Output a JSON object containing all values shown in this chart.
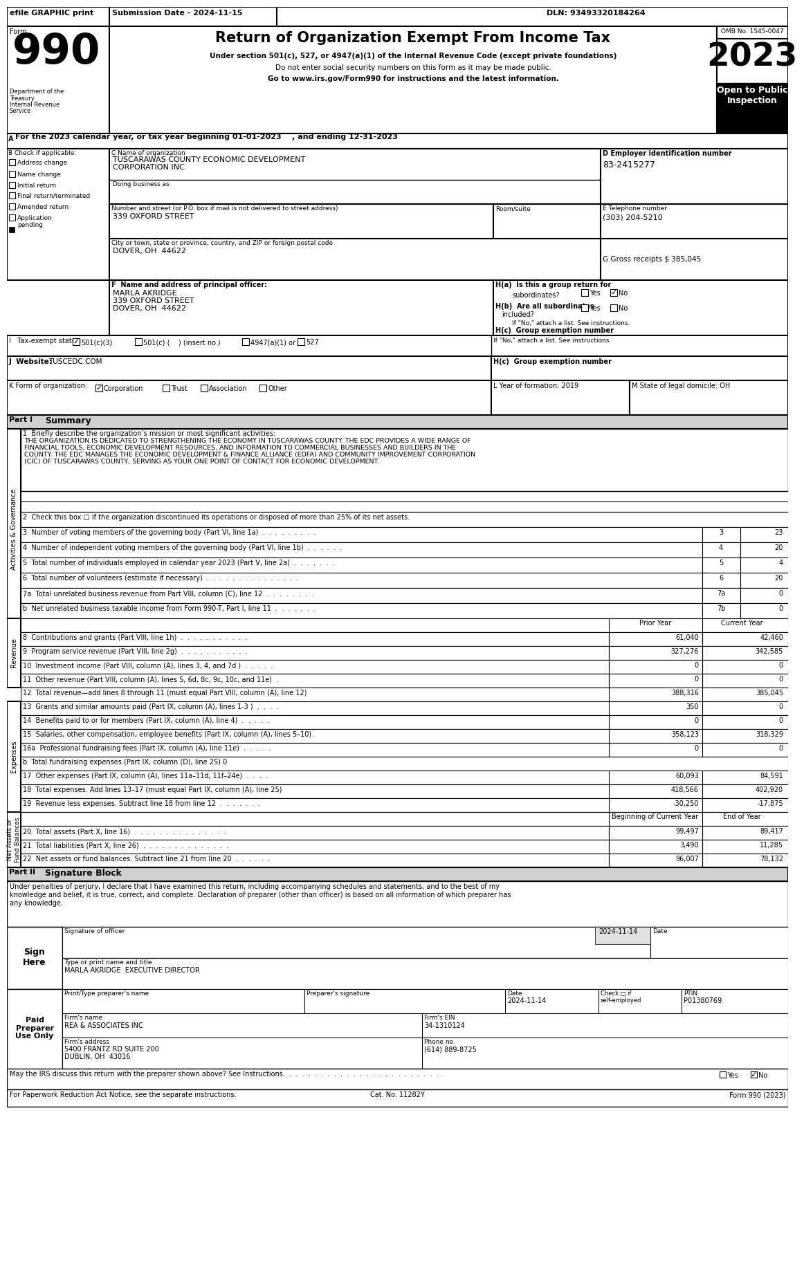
{
  "title_top": "efile GRAPHIC print",
  "submission_date": "Submission Date - 2024-11-15",
  "dln": "DLN: 93493320184264",
  "form_number": "990",
  "main_title": "Return of Organization Exempt From Income Tax",
  "subtitle1": "Under section 501(c), 527, or 4947(a)(1) of the Internal Revenue Code (except private foundations)",
  "subtitle2": "Do not enter social security numbers on this form as it may be made public.",
  "subtitle3": "Go to www.irs.gov/Form990 for instructions and the latest information.",
  "year": "2023",
  "omb": "OMB No. 1545-0047",
  "open_public": "Open to Public\nInspection",
  "dept": "Department of the\nTreasury\nInternal Revenue\nService",
  "tax_year_line": "For the 2023 calendar year, or tax year beginning 01-01-2023    , and ending 12-31-2023",
  "b_label": "B Check if applicable:",
  "b_items": [
    "Address change",
    "Name change",
    "Initial return",
    "Final return/terminated",
    "Amended return",
    "Application\npending"
  ],
  "c_label": "C Name of organization",
  "org_name_l1": "TUSCARAWAS COUNTY ECONOMIC DEVELOPMENT",
  "org_name_l2": "CORPORATION INC",
  "dba_label": "Doing business as",
  "addr_label": "Number and street (or P.O. box if mail is not delivered to street address)",
  "addr_value": "339 OXFORD STREET",
  "room_label": "Room/suite",
  "city_label": "City or town, state or province, country, and ZIP or foreign postal code",
  "city_value": "DOVER, OH  44622",
  "d_label": "D Employer identification number",
  "ein": "83-2415277",
  "e_label": "E Telephone number",
  "phone": "(303) 204-5210",
  "g_label": "G Gross receipts $ 385,045",
  "f_label": "F  Name and address of principal officer:",
  "officer_name": "MARLA AKRIDGE",
  "officer_addr": "339 OXFORD STREET",
  "officer_city": "DOVER, OH  44622",
  "ha_label": "H(a)  Is this a group return for",
  "ha_sub": "subordinates?",
  "hb_label_l1": "H(b)  Are all subordinates",
  "hb_label_l2": "included?",
  "hc_label": "H(c)  Group exemption number",
  "if_no": "If \"No,\" attach a list. See instructions.",
  "i_label": "I   Tax-exempt status:",
  "i_501c3": "501(c)(3)",
  "i_501c": "501(c) (    ) (insert no.)",
  "i_4947": "4947(a)(1) or",
  "i_527": "527",
  "j_label": "J  Website:",
  "j_website": "TUSCEDC.COM",
  "k_label": "K Form of organization:",
  "k_corp": "Corporation",
  "k_trust": "Trust",
  "k_assoc": "Association",
  "k_other": "Other",
  "l_label": "L Year of formation: 2019",
  "m_label": "M State of legal domicile: OH",
  "part1_label": "Part I",
  "part1_title": "Summary",
  "sidebar_AG": "Activities & Governance",
  "line1_label": "1  Briefly describe the organization’s mission or most significant activities:",
  "mission_l1": "THE ORGANIZATION IS DEDICATED TO STRENGTHENING THE ECONOMY IN TUSCARAWAS COUNTY. THE EDC PROVIDES A WIDE RANGE OF",
  "mission_l2": "FINANCIAL TOOLS, ECONOMIC DEVELOPMENT RESOURCES, AND INFORMATION TO COMMERCIAL BUSINESSES AND BUILDERS IN THE",
  "mission_l3": "COUNTY. THE EDC MANAGES THE ECONOMIC DEVELOPMENT & FINANCE ALLIANCE (EDFA) AND COMMUNITY IMPROVEMENT CORPORATION",
  "mission_l4": "(CIC) OF TUSCARAWAS COUNTY, SERVING AS YOUR ONE POINT OF CONTACT FOR ECONOMIC DEVELOPMENT.",
  "line2": "2  Check this box □ if the organization discontinued its operations or disposed of more than 25% of its net assets.",
  "line3": "3  Number of voting members of the governing body (Part VI, line 1a)  .  .  .  .  .  .  .  .  .",
  "line3_num": "3",
  "line3_val": "23",
  "line4": "4  Number of independent voting members of the governing body (Part VI, line 1b)  .  .  .  .  .  .",
  "line4_num": "4",
  "line4_val": "20",
  "line5": "5  Total number of individuals employed in calendar year 2023 (Part V, line 2a)  .  .  .  .  .  .  .",
  "line5_num": "5",
  "line5_val": "4",
  "line6": "6  Total number of volunteers (estimate if necessary)  .  .  .  .  .  .  .  .  .  .  .  .  .  .  .",
  "line6_num": "6",
  "line6_val": "20",
  "line7a": "7a  Total unrelated business revenue from Part VIII, column (C), line 12  .  .  .  .  .  .  .  .",
  "line7a_num": "7a",
  "line7a_val": "0",
  "line7b": "b  Net unrelated business taxable income from Form 990-T, Part I, line 11  .  .  .  .  .  .  .",
  "line7b_num": "7b",
  "line7b_val": "0",
  "rev_header_prior": "Prior Year",
  "rev_header_current": "Current Year",
  "sidebar_rev": "Revenue",
  "line8": "8  Contributions and grants (Part VIII, line 1h)  .  .  .  .  .  .  .  .  .  .  .",
  "line8_prior": "61,040",
  "line8_current": "42,460",
  "line9": "9  Program service revenue (Part VIII, line 2g)  .  .  .  .  .  .  .  .  .  .  .",
  "line9_prior": "327,276",
  "line9_current": "342,585",
  "line10": "10  Investment income (Part VIII, column (A), lines 3, 4, and 7d )  .  .  .  .  .",
  "line10_prior": "0",
  "line10_current": "0",
  "line11": "11  Other revenue (Part VIII, column (A), lines 5, 6d, 8c, 9c, 10c, and 11e)  .",
  "line11_prior": "0",
  "line11_current": "0",
  "line12": "12  Total revenue—add lines 8 through 11 (must equal Part VIII, column (A), line 12)",
  "line12_prior": "388,316",
  "line12_current": "385,045",
  "sidebar_exp": "Expenses",
  "line13": "13  Grants and similar amounts paid (Part IX, column (A), lines 1-3 )  .  .  .  .",
  "line13_prior": "350",
  "line13_current": "0",
  "line14": "14  Benefits paid to or for members (Part IX, column (A), line 4)  .  .  .  .  .",
  "line14_prior": "0",
  "line14_current": "0",
  "line15": "15  Salaries, other compensation, employee benefits (Part IX, column (A), lines 5–10)",
  "line15_prior": "358,123",
  "line15_current": "318,329",
  "line16a": "16a  Professional fundraising fees (Part IX, column (A), line 11e)  .  .  .  .  .",
  "line16a_prior": "0",
  "line16a_current": "0",
  "line16b": "b  Total fundraising expenses (Part IX, column (D), line 25) 0",
  "line17": "17  Other expenses (Part IX, column (A), lines 11a–11d, 11f–24e)  .  .  .  .",
  "line17_prior": "60,093",
  "line17_current": "84,591",
  "line18": "18  Total expenses. Add lines 13–17 (must equal Part IX, column (A), line 25)",
  "line18_prior": "418,566",
  "line18_current": "402,920",
  "line19": "19  Revenue less expenses. Subtract line 18 from line 12  .  .  .  .  .  .  .",
  "line19_prior": "-30,250",
  "line19_current": "-17,875",
  "sidebar_na": "Net Assets or\nFund Balances",
  "bcy_header": "Beginning of Current Year",
  "eoy_header": "End of Year",
  "line20": "20  Total assets (Part X, line 16)  .  .  .  .  .  .  .  .  .  .  .  .  .  .  .",
  "line20_bcy": "99,497",
  "line20_eoy": "89,417",
  "line21": "21  Total liabilities (Part X, line 26)  .  .  .  .  .  .  .  .  .  .  .  .  .  .",
  "line21_bcy": "3,490",
  "line21_eoy": "11,285",
  "line22": "22  Net assets or fund balances. Subtract line 21 from line 20  .  .  .  .  .  .",
  "line22_bcy": "96,007",
  "line22_eoy": "78,132",
  "part2_label": "Part II",
  "part2_title": "Signature Block",
  "sig_text_l1": "Under penalties of perjury, I declare that I have examined this return, including accompanying schedules and statements, and to the best of my",
  "sig_text_l2": "knowledge and belief, it is true, correct, and complete. Declaration of preparer (other than officer) is based on all information of which preparer has",
  "sig_text_l3": "any knowledge.",
  "sign_here_l1": "Sign",
  "sign_here_l2": "Here",
  "sig_date": "2024-11-14",
  "sig_officer_title": "Signature of officer",
  "sig_name_title": "Type or print name and title",
  "sig_officer": "MARLA AKRIDGE  EXECUTIVE DIRECTOR",
  "date_label": "Date",
  "paid_prep_l1": "Paid",
  "paid_prep_l2": "Preparer",
  "paid_prep_l3": "Use Only",
  "prep_name_label": "Print/Type preparer's name",
  "prep_sig_label": "Preparer's signature",
  "prep_date_label": "Date",
  "prep_date": "2024-11-14",
  "check_if_label": "Check □ if",
  "self_emp_label": "self-employed",
  "ptin_label": "PTIN",
  "ptin": "P01380769",
  "firm_name_label": "Firm's name",
  "firm_name": "REA & ASSOCIATES INC",
  "firm_ein_label": "Firm's EIN",
  "firm_ein": "34-1310124",
  "firm_addr_label": "Firm's address",
  "firm_addr": "5400 FRANTZ RD SUITE 200",
  "firm_city": "DUBLIN, OH  43016",
  "phone_label": "Phone no.",
  "phone_no": "(614) 889-8725",
  "discuss_text": "May the IRS discuss this return with the preparer shown above? See Instructions.  .  .  .  .  .  .  .  .  .  .  .  .  .  .  .  .  .  .  .  .  .  .  .  .",
  "paperwork_text": "For Paperwork Reduction Act Notice, see the separate instructions.",
  "cat_no": "Cat. No. 11282Y",
  "form_bottom": "Form 990 (2023)"
}
